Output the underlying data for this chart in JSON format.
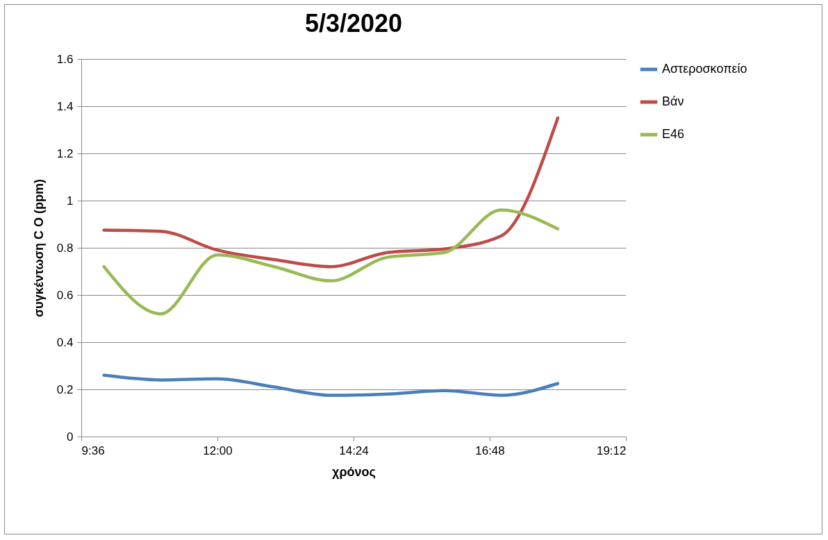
{
  "chart_data": {
    "type": "line",
    "title": "5/3/2020",
    "xlabel": "χρόνος",
    "ylabel": "συγκέντωση C O (ppm)",
    "x": [
      10,
      11,
      12,
      13,
      14,
      15,
      16,
      17,
      18
    ],
    "series": [
      {
        "name": "Αστεροσκοπείο",
        "color": "#4a7ebb",
        "values": [
          0.26,
          0.24,
          0.245,
          0.21,
          0.175,
          0.18,
          0.195,
          0.175,
          0.225
        ]
      },
      {
        "name": "Βάν",
        "color": "#be4b48",
        "values": [
          0.875,
          0.87,
          0.79,
          0.75,
          0.72,
          0.78,
          0.795,
          0.85,
          1.35
        ]
      },
      {
        "name": "E46",
        "color": "#98b954",
        "values": [
          0.72,
          0.52,
          0.77,
          0.72,
          0.66,
          0.76,
          0.78,
          0.96,
          0.88
        ]
      }
    ],
    "xlim": [
      9.6,
      19.2
    ],
    "xticks": [
      {
        "value": 9.6,
        "label": "9:36"
      },
      {
        "value": 12,
        "label": "12:00"
      },
      {
        "value": 14.4,
        "label": "14:24"
      },
      {
        "value": 16.8,
        "label": "16:48"
      },
      {
        "value": 19.2,
        "label": "19:12"
      }
    ],
    "ylim": [
      0,
      1.6
    ],
    "yticks": [
      0,
      0.2,
      0.4,
      0.6,
      0.8,
      1,
      1.2,
      1.4,
      1.6
    ],
    "grid": "y",
    "legend": "right",
    "marker": "none",
    "line_style": "solid"
  }
}
